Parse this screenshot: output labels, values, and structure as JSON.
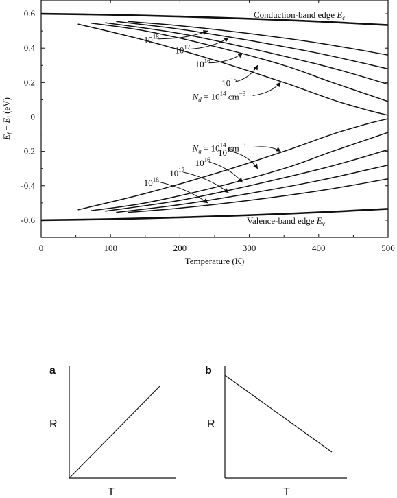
{
  "chart_data": [
    {
      "type": "line",
      "title": "",
      "xlabel": "Temperature (K)",
      "ylabel_parts": {
        "E": "E",
        "f": "f",
        "minus": " − ",
        "i": "i",
        "unit": " (eV)"
      },
      "xlim": [
        0,
        500
      ],
      "ylim": [
        -0.7,
        0.68
      ],
      "xticks": [
        0,
        100,
        200,
        300,
        400,
        500
      ],
      "yticks": [
        0.6,
        0.4,
        0.2,
        0,
        -0.2,
        -0.4,
        -0.6
      ],
      "ytick_labels": [
        "0.6",
        "0.4",
        "0.2",
        "0",
        "-0.2",
        "-0.4",
        "-0.6"
      ],
      "grid": false,
      "band_edges": [
        {
          "label_text": "Conduction-band edge ",
          "label_symbol": "E",
          "label_sub": "c",
          "x": [
            0,
            100,
            200,
            300,
            400,
            500
          ],
          "y": [
            0.6,
            0.594,
            0.584,
            0.571,
            0.555,
            0.534
          ]
        },
        {
          "label_text": "Valence-band edge ",
          "label_symbol": "E",
          "label_sub": "v",
          "x": [
            0,
            100,
            200,
            300,
            400,
            500
          ],
          "y": [
            -0.6,
            -0.594,
            -0.584,
            -0.571,
            -0.555,
            -0.534
          ]
        }
      ],
      "donor_series": [
        {
          "x": [
            125,
            200,
            300,
            400,
            500
          ],
          "y": [
            0.555,
            0.53,
            0.485,
            0.43,
            0.36
          ]
        },
        {
          "x": [
            108,
            200,
            300,
            400,
            500
          ],
          "y": [
            0.555,
            0.51,
            0.445,
            0.37,
            0.28
          ]
        },
        {
          "x": [
            92,
            200,
            300,
            400,
            450,
            500
          ],
          "y": [
            0.548,
            0.485,
            0.4,
            0.305,
            0.25,
            0.19
          ]
        },
        {
          "x": [
            72,
            150,
            250,
            350,
            420,
            500
          ],
          "y": [
            0.545,
            0.5,
            0.41,
            0.3,
            0.2,
            0.09
          ]
        },
        {
          "x": [
            53,
            150,
            250,
            350,
            420,
            470,
            500
          ],
          "y": [
            0.54,
            0.445,
            0.33,
            0.2,
            0.1,
            0.04,
            0.01
          ]
        }
      ],
      "acceptor_series": [
        {
          "x": [
            125,
            200,
            300,
            400,
            500
          ],
          "y": [
            -0.555,
            -0.53,
            -0.485,
            -0.43,
            -0.36
          ]
        },
        {
          "x": [
            108,
            200,
            300,
            400,
            500
          ],
          "y": [
            -0.555,
            -0.51,
            -0.445,
            -0.37,
            -0.28
          ]
        },
        {
          "x": [
            92,
            200,
            300,
            400,
            450,
            500
          ],
          "y": [
            -0.548,
            -0.485,
            -0.4,
            -0.305,
            -0.25,
            -0.19
          ]
        },
        {
          "x": [
            72,
            150,
            250,
            350,
            420,
            500
          ],
          "y": [
            -0.545,
            -0.5,
            -0.41,
            -0.3,
            -0.2,
            -0.09
          ]
        },
        {
          "x": [
            53,
            150,
            250,
            350,
            420,
            470,
            500
          ],
          "y": [
            -0.54,
            -0.445,
            -0.33,
            -0.2,
            -0.1,
            -0.04,
            -0.01
          ]
        }
      ],
      "annotations": [
        {
          "base": "10",
          "exp": "18",
          "tail": "",
          "text_at": [
            148,
            0.43
          ],
          "arrow_to": [
            240,
            0.5
          ]
        },
        {
          "base": "10",
          "exp": "17",
          "tail": "",
          "text_at": [
            193,
            0.37
          ],
          "arrow_to": [
            270,
            0.46
          ]
        },
        {
          "base": "10",
          "exp": "16",
          "tail": "",
          "text_at": [
            222,
            0.29
          ],
          "arrow_to": [
            290,
            0.37
          ]
        },
        {
          "base": "10",
          "exp": "15",
          "tail": "",
          "text_at": [
            260,
            0.18
          ],
          "arrow_to": [
            312,
            0.3
          ]
        },
        {
          "base": "",
          "exp": "14",
          "tail": " cm",
          "tail_exp": "−3",
          "prefix": "N",
          "prefix_sub": "d",
          "text_at": [
            218,
            0.1
          ],
          "arrow_to": [
            345,
            0.2
          ]
        },
        {
          "base": "",
          "exp": "14",
          "tail": " cm",
          "tail_exp": "−3",
          "prefix": "N",
          "prefix_sub": "a",
          "text_at": [
            218,
            -0.2
          ],
          "arrow_to": [
            345,
            -0.2
          ]
        },
        {
          "base": "10",
          "exp": "15",
          "tail": "",
          "text_at": [
            255,
            -0.225
          ],
          "arrow_to": [
            312,
            -0.3
          ]
        },
        {
          "base": "10",
          "exp": "16",
          "tail": "",
          "text_at": [
            222,
            -0.285
          ],
          "arrow_to": [
            290,
            -0.38
          ]
        },
        {
          "base": "10",
          "exp": "17",
          "tail": "",
          "text_at": [
            185,
            -0.345
          ],
          "arrow_to": [
            270,
            -0.44
          ]
        },
        {
          "base": "10",
          "exp": "18",
          "tail": "",
          "text_at": [
            148,
            -0.4
          ],
          "arrow_to": [
            240,
            -0.5
          ]
        }
      ]
    },
    {
      "type": "line",
      "panel": "a",
      "xlabel": "T",
      "ylabel": "R",
      "x": [
        0,
        1
      ],
      "y": [
        0,
        1
      ]
    },
    {
      "type": "line",
      "panel": "b",
      "xlabel": "T",
      "ylabel": "R",
      "x": [
        0,
        1
      ],
      "y": [
        1,
        0
      ]
    }
  ]
}
